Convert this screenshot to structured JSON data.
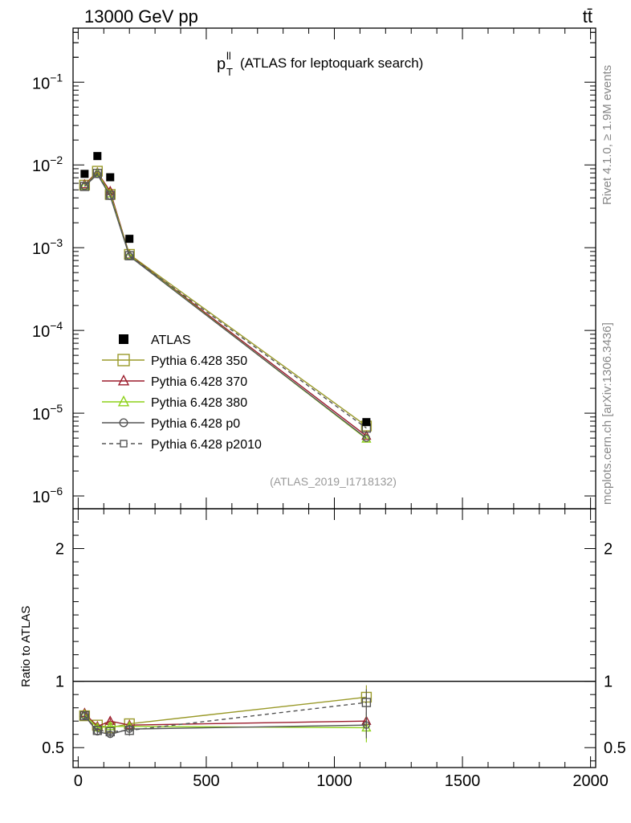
{
  "header": {
    "left": "13000 GeV pp",
    "right": "tt̄"
  },
  "side_labels": {
    "rivet": "Rivet 4.1.0, ≥ 1.9M events",
    "mcplots": "mcplots.cern.ch [arXiv:1306.3436]"
  },
  "chart_data": {
    "type": "scatter",
    "title": "p_T^ll (ATLAS for leptoquark search)",
    "title_main": "p",
    "title_sub": "T",
    "title_sup": "ll",
    "title_rest": "(ATLAS for leptoquark search)",
    "analysis_id": "(ATLAS_2019_I1718132)",
    "xlim": [
      -20,
      2020
    ],
    "ylim_main": [
      7e-07,
      0.45
    ],
    "yscale_main": "log",
    "ylim_ratio": [
      0.35,
      2.3
    ],
    "ylabel_ratio": "Ratio to ATLAS",
    "x_ticks": [
      0,
      500,
      1000,
      1500,
      2000
    ],
    "x_tick_labels": [
      "0",
      "500",
      "1000",
      "1500",
      "2000"
    ],
    "main_y_ticks": [
      {
        "value": 0.1,
        "base": "10",
        "exp": "−1"
      },
      {
        "value": 0.01,
        "base": "10",
        "exp": "−2"
      },
      {
        "value": 0.001,
        "base": "10",
        "exp": "−3"
      },
      {
        "value": 0.0001,
        "base": "10",
        "exp": "−4"
      },
      {
        "value": 1e-05,
        "base": "10",
        "exp": "−5"
      },
      {
        "value": 1e-06,
        "base": "10",
        "exp": "−6"
      }
    ],
    "ratio_y_ticks": [
      {
        "value": 0.5,
        "label": "0.5"
      },
      {
        "value": 1,
        "label": "1"
      },
      {
        "value": 2,
        "label": "2"
      }
    ],
    "data": {
      "name": "ATLAS",
      "x": [
        25,
        75,
        125,
        200,
        1125
      ],
      "y": [
        0.0078,
        0.0128,
        0.0071,
        0.00128,
        7.8e-06
      ]
    },
    "series": [
      {
        "name": "Pythia 6.428 350",
        "color": "#9a9a2a",
        "marker": "square",
        "dash": false,
        "y": [
          0.0057,
          0.0084,
          0.0044,
          0.00083,
          7e-06
        ],
        "ratio": [
          0.74,
          0.67,
          0.65,
          0.68,
          0.88
        ],
        "ratio_err": [
          0.02,
          0.02,
          0.02,
          0.03,
          0.09
        ]
      },
      {
        "name": "Pythia 6.428 370",
        "color": "#9b1c2c",
        "marker": "triangle",
        "dash": false,
        "y": [
          0.0058,
          0.0081,
          0.0048,
          0.00082,
          5.3e-06
        ],
        "ratio": [
          0.76,
          0.66,
          0.7,
          0.67,
          0.7
        ],
        "ratio_err": [
          0.02,
          0.02,
          0.02,
          0.03,
          0.1
        ]
      },
      {
        "name": "Pythia 6.428 380",
        "color": "#8ed11a",
        "marker": "triangle",
        "dash": false,
        "y": [
          0.0056,
          0.008,
          0.0045,
          0.00081,
          4.9e-06
        ],
        "ratio": [
          0.75,
          0.65,
          0.66,
          0.66,
          0.65
        ],
        "ratio_err": [
          0.02,
          0.02,
          0.02,
          0.03,
          0.11
        ]
      },
      {
        "name": "Pythia 6.428 p0",
        "color": "#555555",
        "marker": "circle",
        "dash": false,
        "y": [
          0.0055,
          0.0077,
          0.0042,
          0.00079,
          5e-06
        ],
        "ratio": [
          0.74,
          0.62,
          0.6,
          0.64,
          0.67
        ],
        "ratio_err": [
          0.02,
          0.02,
          0.02,
          0.03,
          0.1
        ]
      },
      {
        "name": "Pythia 6.428 p2010",
        "color": "#555555",
        "marker": "square",
        "dash": true,
        "y": [
          0.0055,
          0.0079,
          0.0043,
          0.0008,
          6.6e-06
        ],
        "ratio": [
          0.74,
          0.63,
          0.62,
          0.63,
          0.84
        ],
        "ratio_err": [
          0.02,
          0.02,
          0.02,
          0.04,
          0.1
        ]
      }
    ]
  }
}
